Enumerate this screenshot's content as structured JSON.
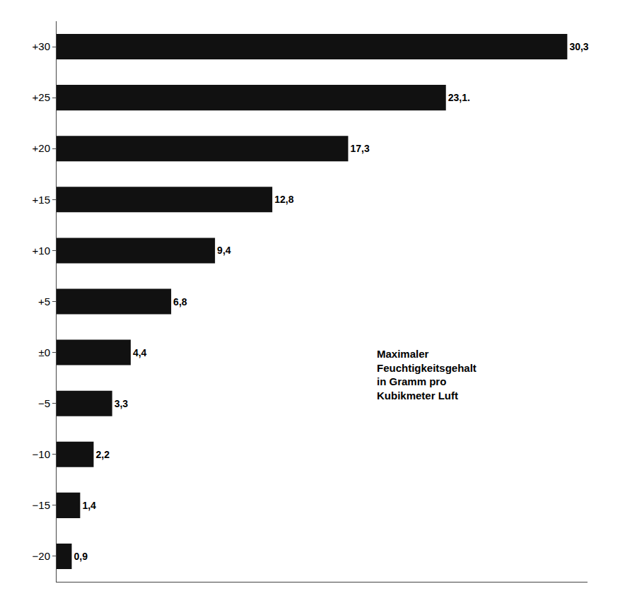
{
  "chart_data": {
    "type": "bar",
    "orientation": "horizontal",
    "categories": [
      "+30",
      "+25",
      "+20",
      "+15",
      "+10",
      "+5",
      "±0",
      "−5",
      "−10",
      "−15",
      "−20"
    ],
    "values": [
      30.3,
      23.1,
      17.3,
      12.8,
      9.4,
      6.8,
      4.4,
      3.3,
      2.2,
      1.4,
      0.9
    ],
    "value_labels": [
      "30,3",
      "23,1.",
      "17,3",
      "12,8",
      "9,4",
      "6,8",
      "4,4",
      "3,3",
      "2,2",
      "1,4",
      "0,9"
    ],
    "data_labels": true,
    "color": "#111111",
    "xlim": [
      0,
      31.5
    ],
    "tick_labels": "y",
    "grid": false,
    "annotations": [
      "Maximaler\nFeuchtigkeitsgehalt\nin Gramm pro\nKubikmeter Luft"
    ]
  }
}
